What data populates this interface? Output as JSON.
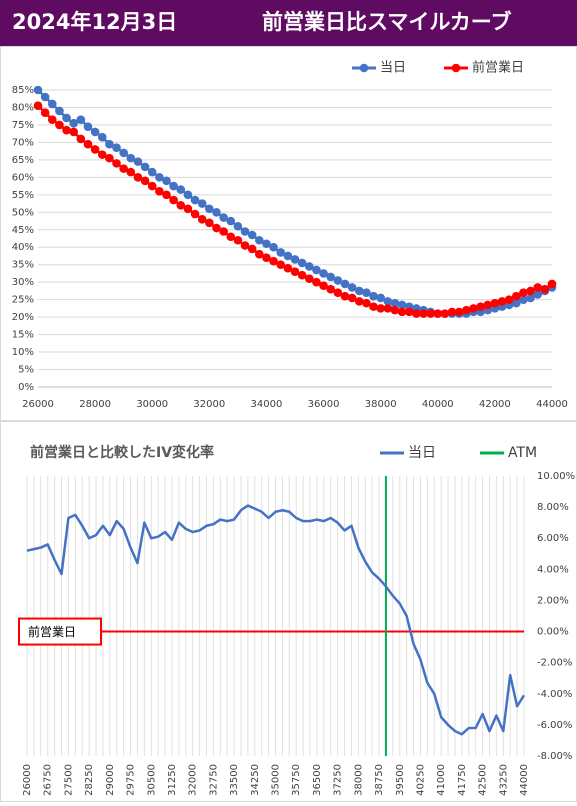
{
  "header": {
    "date": "2024年12月3日",
    "title": "前営業日比スマイルカーブ"
  },
  "chart_data": [
    {
      "type": "line",
      "x": [
        26000,
        26250,
        26500,
        26750,
        27000,
        27250,
        27500,
        27750,
        28000,
        28250,
        28500,
        28750,
        29000,
        29250,
        29500,
        29750,
        30000,
        30250,
        30500,
        30750,
        31000,
        31250,
        31500,
        31750,
        32000,
        32250,
        32500,
        32750,
        33000,
        33250,
        33500,
        33750,
        34000,
        34250,
        34500,
        34750,
        35000,
        35250,
        35500,
        35750,
        36000,
        36250,
        36500,
        36750,
        37000,
        37250,
        37500,
        37750,
        38000,
        38250,
        38500,
        38750,
        39000,
        39250,
        39500,
        39750,
        40000,
        40250,
        40500,
        40750,
        41000,
        41250,
        41500,
        41750,
        42000,
        42250,
        42500,
        42750,
        43000,
        43250,
        43500,
        43750,
        44000
      ],
      "series": [
        {
          "name": "当日",
          "color": "#4472c4",
          "values": [
            85,
            83,
            81,
            79,
            77,
            75.5,
            76.5,
            74.5,
            73,
            71.5,
            69.5,
            68.5,
            67,
            65.5,
            64.5,
            63,
            61.5,
            60,
            59,
            57.5,
            56.5,
            55,
            53.5,
            52.5,
            51,
            50,
            48.5,
            47.5,
            46,
            44.5,
            43.5,
            42,
            41,
            40,
            38.5,
            37.5,
            36.5,
            35.5,
            34.5,
            33.5,
            32.5,
            31.5,
            30.5,
            29.5,
            28.5,
            27.5,
            27,
            26,
            25.5,
            24.5,
            24,
            23.5,
            23,
            22.5,
            22,
            21.5,
            21,
            21,
            21,
            21,
            21,
            21.5,
            21.5,
            22,
            22.5,
            23,
            23.5,
            24,
            25,
            25.5,
            26.5,
            27.5,
            28.5
          ]
        },
        {
          "name": "前営業日",
          "color": "#ff0000",
          "values": [
            80.5,
            78.5,
            76.5,
            75,
            73.5,
            73,
            71,
            69.5,
            68,
            66.5,
            65.5,
            64,
            62.5,
            61.5,
            60,
            59,
            57.5,
            56,
            55,
            53.5,
            52,
            51,
            49.5,
            48,
            47,
            45.5,
            44.5,
            43,
            42,
            40.5,
            39.5,
            38,
            37,
            36,
            35,
            34,
            33,
            32,
            31,
            30,
            29,
            28,
            27,
            26,
            25.5,
            24.5,
            24,
            23,
            22.5,
            22.5,
            22,
            21.5,
            21.5,
            21,
            21,
            21,
            21,
            21,
            21.5,
            21.5,
            22,
            22.5,
            23,
            23.5,
            24,
            24.5,
            25,
            26,
            27,
            27.5,
            28.5,
            28,
            29.5
          ]
        }
      ],
      "xlim": [
        26000,
        44000
      ],
      "xticks": [
        26000,
        28000,
        30000,
        32000,
        34000,
        36000,
        38000,
        40000,
        42000,
        44000
      ],
      "ylim": [
        0,
        85
      ],
      "yticks": [
        {
          "value": 0,
          "label": "0%"
        },
        {
          "value": 5,
          "label": "5%"
        },
        {
          "value": 10,
          "label": "10%"
        },
        {
          "value": 15,
          "label": "15%"
        },
        {
          "value": 20,
          "label": "20%"
        },
        {
          "value": 25,
          "label": "25%"
        },
        {
          "value": 30,
          "label": "30%"
        },
        {
          "value": 35,
          "label": "35%"
        },
        {
          "value": 40,
          "label": "40%"
        },
        {
          "value": 45,
          "label": "45%"
        },
        {
          "value": 50,
          "label": "50%"
        },
        {
          "value": 55,
          "label": "55%"
        },
        {
          "value": 60,
          "label": "60%"
        },
        {
          "value": 65,
          "label": "65%"
        },
        {
          "value": 70,
          "label": "70%"
        },
        {
          "value": 75,
          "label": "75%"
        },
        {
          "value": 80,
          "label": "80%"
        },
        {
          "value": 85,
          "label": "85%"
        }
      ],
      "grid": "y",
      "markers": true,
      "legend": "top-right"
    },
    {
      "type": "line",
      "title": "前営業日と比較したIV変化率",
      "x": [
        26000,
        26250,
        26500,
        26750,
        27000,
        27250,
        27500,
        27750,
        28000,
        28250,
        28500,
        28750,
        29000,
        29250,
        29500,
        29750,
        30000,
        30250,
        30500,
        30750,
        31000,
        31250,
        31500,
        31750,
        32000,
        32250,
        32500,
        32750,
        33000,
        33250,
        33500,
        33750,
        34000,
        34250,
        34500,
        34750,
        35000,
        35250,
        35500,
        35750,
        36000,
        36250,
        36500,
        36750,
        37000,
        37250,
        37500,
        37750,
        38000,
        38250,
        38500,
        38750,
        39000,
        39250,
        39500,
        39750,
        40000,
        40250,
        40500,
        40750,
        41000,
        41250,
        41500,
        41750,
        42000,
        42250,
        42500,
        42750,
        43000,
        43250,
        43500,
        43750,
        44000
      ],
      "series": [
        {
          "name": "当日",
          "color": "#4472c4",
          "values": [
            5.2,
            5.3,
            5.4,
            5.6,
            4.6,
            3.7,
            7.3,
            7.5,
            6.8,
            6.0,
            6.2,
            6.8,
            6.2,
            7.1,
            6.6,
            5.4,
            4.4,
            7.0,
            6.0,
            6.1,
            6.4,
            5.9,
            7.0,
            6.6,
            6.4,
            6.5,
            6.8,
            6.9,
            7.2,
            7.1,
            7.2,
            7.8,
            8.1,
            7.9,
            7.7,
            7.3,
            7.7,
            7.8,
            7.7,
            7.3,
            7.1,
            7.1,
            7.2,
            7.1,
            7.3,
            7.0,
            6.5,
            6.8,
            5.4,
            4.5,
            3.8,
            3.4,
            2.9,
            2.3,
            1.8,
            1.0,
            -0.8,
            -1.8,
            -3.3,
            -4.0,
            -5.5,
            -6.0,
            -6.4,
            -6.6,
            -6.2,
            -6.2,
            -5.3,
            -6.4,
            -5.4,
            -6.4,
            -2.8,
            -4.8,
            -4.1
          ]
        }
      ],
      "vlines": [
        {
          "name": "ATM",
          "x": 39000,
          "color": "#00b050"
        }
      ],
      "hline": {
        "label": "前営業日",
        "value": 0,
        "color": "#ff0000"
      },
      "xlim": [
        26000,
        44000
      ],
      "xticks": [
        26000,
        26750,
        27500,
        28250,
        29000,
        29750,
        30500,
        31250,
        32000,
        32750,
        33500,
        34250,
        35000,
        35750,
        36500,
        37250,
        38000,
        38750,
        39500,
        40250,
        41000,
        41750,
        42500,
        43250,
        44000
      ],
      "ylim": [
        -8,
        10
      ],
      "yticks": [
        {
          "value": -8,
          "label": "-8.00%"
        },
        {
          "value": -6,
          "label": "-6.00%"
        },
        {
          "value": -4,
          "label": "-4.00%"
        },
        {
          "value": -2,
          "label": "-2.00%"
        },
        {
          "value": 0,
          "label": "0.00%"
        },
        {
          "value": 2,
          "label": "2.00%"
        },
        {
          "value": 4,
          "label": "4.00%"
        },
        {
          "value": 6,
          "label": "6.00%"
        },
        {
          "value": 8,
          "label": "8.00%"
        },
        {
          "value": 10,
          "label": "10.00%"
        }
      ],
      "grid": "x",
      "markers": false,
      "legend": "top-right"
    }
  ]
}
